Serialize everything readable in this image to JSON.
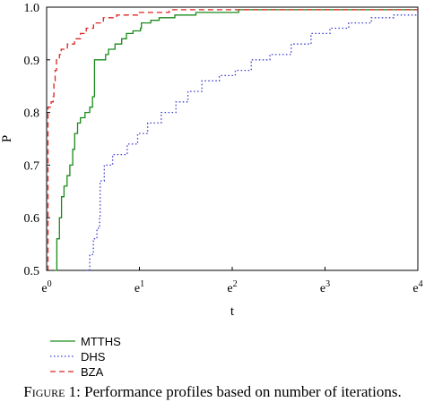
{
  "chart_data": {
    "type": "line",
    "xlabel": "t",
    "ylabel": "P",
    "x_scale": "log_e",
    "xlim": [
      1,
      54.598
    ],
    "ylim": [
      0.5,
      1.0
    ],
    "x_ticks": [
      {
        "base": "e",
        "exp": "0",
        "value": 1
      },
      {
        "base": "e",
        "exp": "1",
        "value": 2.718
      },
      {
        "base": "e",
        "exp": "2",
        "value": 7.389
      },
      {
        "base": "e",
        "exp": "3",
        "value": 20.086
      },
      {
        "base": "e",
        "exp": "4",
        "value": 54.598
      }
    ],
    "y_ticks": [
      {
        "label": "0.5",
        "value": 0.5
      },
      {
        "label": "0.6",
        "value": 0.6
      },
      {
        "label": "0.7",
        "value": 0.7
      },
      {
        "label": "0.8",
        "value": 0.8
      },
      {
        "label": "0.9",
        "value": 0.9
      },
      {
        "label": "1.0",
        "value": 1.0
      }
    ],
    "legend_position": "bottom-left",
    "series": [
      {
        "name": "MTTHS",
        "color": "#1a8a1a",
        "style": "solid",
        "points": [
          [
            1.092,
            0.5
          ],
          [
            1.116,
            0.56
          ],
          [
            1.148,
            0.6
          ],
          [
            1.174,
            0.64
          ],
          [
            1.206,
            0.66
          ],
          [
            1.246,
            0.68
          ],
          [
            1.284,
            0.7
          ],
          [
            1.325,
            0.73
          ],
          [
            1.353,
            0.76
          ],
          [
            1.395,
            0.78
          ],
          [
            1.439,
            0.79
          ],
          [
            1.512,
            0.8
          ],
          [
            1.591,
            0.81
          ],
          [
            1.64,
            0.83
          ],
          [
            1.658,
            0.83
          ],
          [
            1.675,
            0.9
          ],
          [
            1.795,
            0.9
          ],
          [
            1.889,
            0.91
          ],
          [
            1.948,
            0.92
          ],
          [
            2.091,
            0.93
          ],
          [
            2.245,
            0.94
          ],
          [
            2.362,
            0.95
          ],
          [
            2.536,
            0.955
          ],
          [
            2.749,
            0.96
          ],
          [
            2.777,
            0.97
          ],
          [
            3.072,
            0.975
          ],
          [
            3.363,
            0.98
          ],
          [
            3.98,
            0.985
          ],
          [
            4.994,
            0.99
          ],
          [
            7.151,
            0.99
          ],
          [
            7.924,
            0.995
          ],
          [
            54.598,
            0.995
          ]
        ]
      },
      {
        "name": "DHS",
        "color": "#3b3bcc",
        "style": "dotted",
        "points": [
          [
            1.53,
            0.5
          ],
          [
            1.591,
            0.53
          ],
          [
            1.654,
            0.56
          ],
          [
            1.72,
            0.58
          ],
          [
            1.77,
            0.6
          ],
          [
            1.78,
            0.67
          ],
          [
            1.861,
            0.7
          ],
          [
            2.036,
            0.72
          ],
          [
            2.383,
            0.74
          ],
          [
            2.665,
            0.76
          ],
          [
            2.972,
            0.78
          ],
          [
            3.439,
            0.8
          ],
          [
            4.029,
            0.82
          ],
          [
            4.586,
            0.84
          ],
          [
            5.328,
            0.86
          ],
          [
            6.43,
            0.87
          ],
          [
            7.634,
            0.88
          ],
          [
            9.068,
            0.9
          ],
          [
            11.09,
            0.91
          ],
          [
            13.96,
            0.93
          ],
          [
            17.27,
            0.95
          ],
          [
            21.19,
            0.96
          ],
          [
            25.91,
            0.97
          ],
          [
            33.1,
            0.98
          ],
          [
            42.09,
            0.985
          ],
          [
            54.598,
            0.99
          ]
        ]
      },
      {
        "name": "BZA",
        "color": "#dd2222",
        "style": "dashed",
        "points": [
          [
            1.01,
            0.5
          ],
          [
            1.015,
            0.81
          ],
          [
            1.05,
            0.82
          ],
          [
            1.073,
            0.83
          ],
          [
            1.081,
            0.86
          ],
          [
            1.096,
            0.88
          ],
          [
            1.112,
            0.9
          ],
          [
            1.148,
            0.91
          ],
          [
            1.169,
            0.92
          ],
          [
            1.251,
            0.93
          ],
          [
            1.351,
            0.94
          ],
          [
            1.439,
            0.95
          ],
          [
            1.533,
            0.96
          ],
          [
            1.658,
            0.97
          ],
          [
            1.844,
            0.98
          ],
          [
            2.127,
            0.985
          ],
          [
            2.665,
            0.99
          ],
          [
            3.747,
            0.995
          ],
          [
            54.598,
            0.995
          ]
        ]
      }
    ]
  },
  "caption": {
    "label": "Figure 1",
    "text": ": Performance profiles based on number of iterations."
  }
}
